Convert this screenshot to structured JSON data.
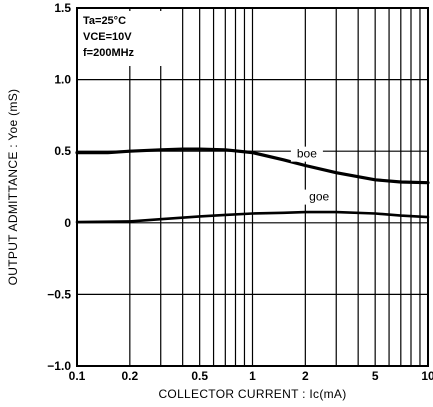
{
  "chart_data": {
    "type": "line",
    "title": "",
    "conditions": [
      "Ta=25°C",
      "VCE=10V",
      "f=200MHz"
    ],
    "xlabel": "COLLECTOR CURRENT : Ic(mA)",
    "ylabel": "OUTPUT ADMITTANCE : Yoe (mS)",
    "xscale": "log",
    "xlim": [
      0.1,
      10
    ],
    "ylim": [
      -1.0,
      1.5
    ],
    "grid": true,
    "x_ticks": [
      0.1,
      0.2,
      0.5,
      1,
      2,
      5,
      10
    ],
    "x_tick_labels": [
      "0.1",
      "0.2",
      "0.5",
      "1",
      "2",
      "5",
      "10"
    ],
    "y_ticks": [
      -1.0,
      -0.5,
      0,
      0.5,
      1.0,
      1.5
    ],
    "y_tick_labels": [
      "−1.0",
      "−0.5",
      "0",
      "0.5",
      "1.0",
      "1.5"
    ],
    "series": [
      {
        "name": "boe",
        "x": [
          0.1,
          0.15,
          0.2,
          0.3,
          0.4,
          0.5,
          0.7,
          1,
          1.5,
          2,
          3,
          5,
          7,
          10
        ],
        "values": [
          0.49,
          0.49,
          0.5,
          0.51,
          0.515,
          0.515,
          0.51,
          0.49,
          0.44,
          0.4,
          0.35,
          0.3,
          0.285,
          0.28
        ]
      },
      {
        "name": "goe",
        "x": [
          0.1,
          0.2,
          0.3,
          0.5,
          0.7,
          1,
          1.5,
          2,
          3,
          5,
          7,
          10
        ],
        "values": [
          0.005,
          0.01,
          0.025,
          0.045,
          0.055,
          0.065,
          0.07,
          0.075,
          0.075,
          0.065,
          0.05,
          0.04
        ]
      }
    ]
  }
}
